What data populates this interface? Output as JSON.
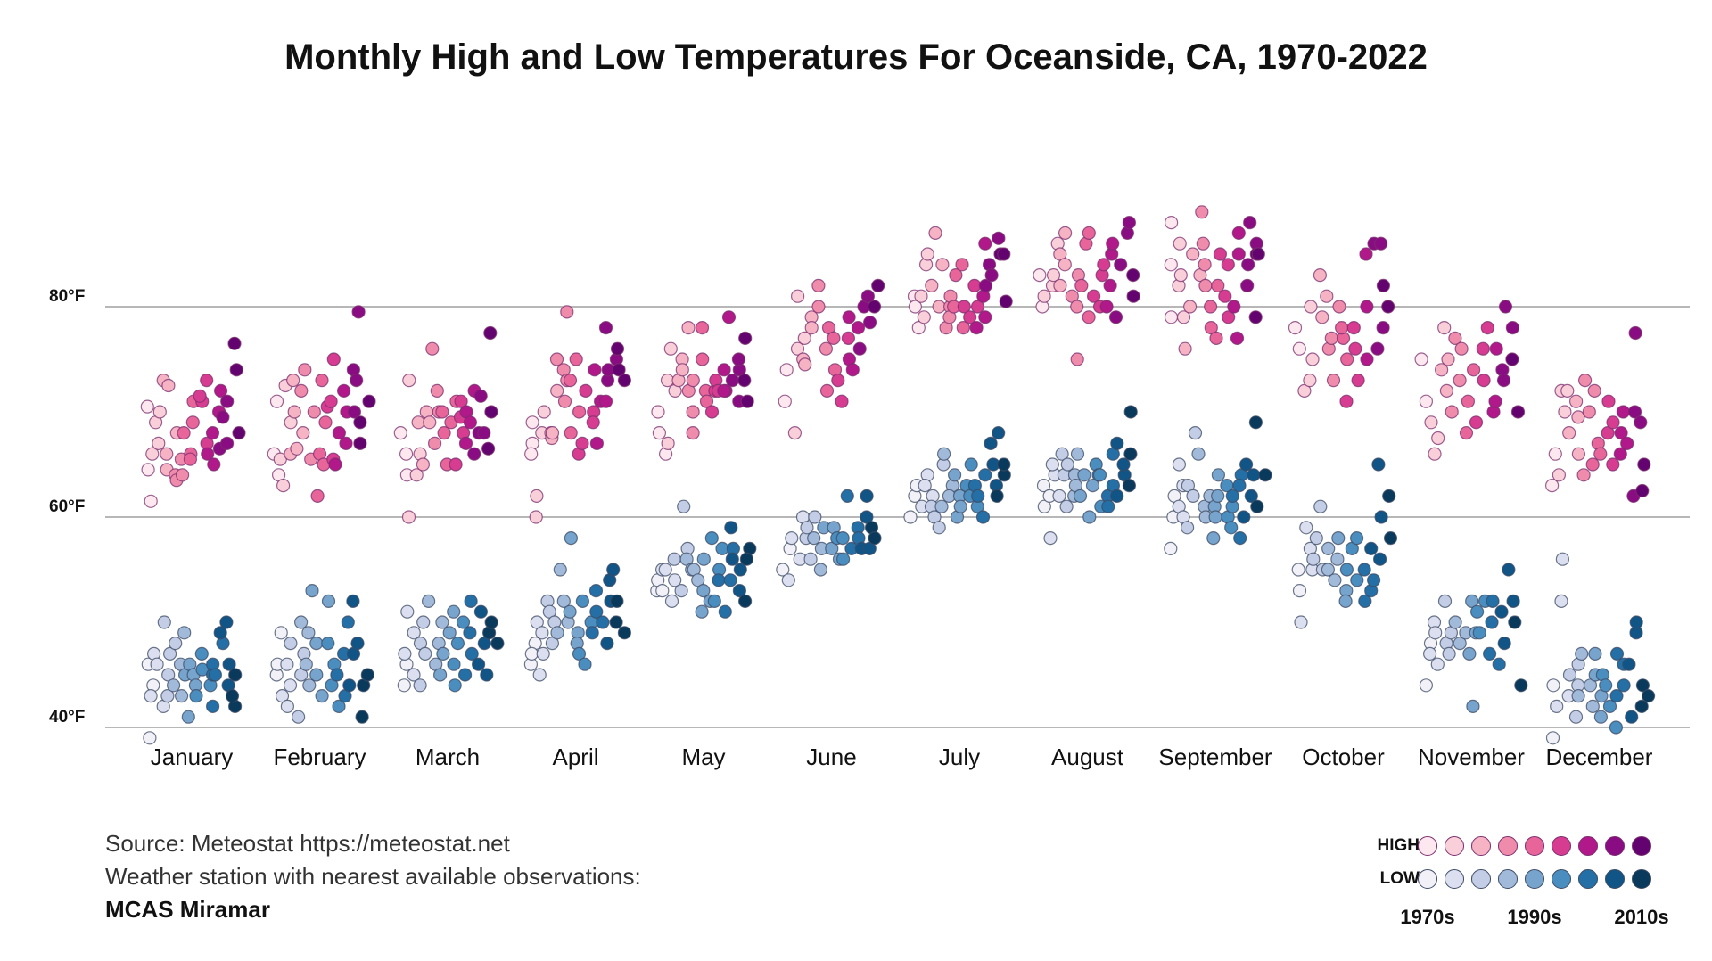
{
  "chart_data": {
    "type": "scatter",
    "title": "Monthly High and Low Temperatures For Oceanside, CA, 1970-2022",
    "xlabel": "",
    "ylabel": "",
    "categories": [
      "January",
      "February",
      "March",
      "April",
      "May",
      "June",
      "July",
      "August",
      "September",
      "October",
      "November",
      "December"
    ],
    "y_ticks": [
      "40°F",
      "60°F",
      "80°F"
    ],
    "y_tick_values": [
      40,
      60,
      80
    ],
    "ylim": [
      39,
      92
    ],
    "x_range_years": [
      1970,
      2022
    ],
    "grid": "horizontal",
    "legend_position": "bottom-right",
    "series": [
      {
        "name": "HIGH",
        "encoding": "Each point is one year's average daily high for the month; within each month points are ordered by year, 1970 to 2022",
        "values": {
          "January": [
            64.5,
            61.5,
            70.5,
            66,
            67,
            69,
            70,
            73,
            64.5,
            66,
            72.5,
            68,
            64,
            63.5,
            65.5,
            64,
            68,
            66,
            65.5,
            69,
            71,
            71,
            71.5,
            67,
            73,
            66,
            68,
            65,
            70,
            72,
            66.5,
            69.5,
            67,
            71,
            74,
            76.5,
            68
          ],
          "February": [
            66,
            64,
            71,
            65.5,
            63,
            72.5,
            69,
            66,
            73,
            70,
            66.5,
            68,
            72,
            74,
            65.5,
            70,
            62,
            66,
            73,
            65,
            69,
            70.5,
            65.5,
            71,
            75,
            65,
            68,
            72,
            70,
            67,
            74,
            73,
            70,
            79.5,
            67,
            69,
            71
          ],
          "March": [
            68,
            66,
            64,
            60,
            73,
            64,
            66,
            69,
            70,
            65,
            69,
            76,
            67,
            70,
            72,
            68,
            70,
            69,
            65,
            71,
            65,
            69.5,
            68,
            71,
            70,
            67,
            69,
            72,
            66,
            68,
            71.5,
            68,
            77.5,
            66.5,
            70
          ],
          "April": [
            67,
            69,
            66,
            60,
            62,
            68,
            70,
            68,
            67.5,
            68,
            72,
            75,
            74,
            71,
            73,
            79.5,
            73,
            68,
            70,
            75,
            66,
            67,
            72,
            70,
            69,
            74,
            67,
            71,
            71,
            78,
            73,
            74,
            75,
            76,
            74,
            73
          ],
          "May": [
            70,
            68,
            66,
            67,
            73,
            76,
            72,
            73,
            75,
            74,
            78,
            72,
            70,
            68,
            73,
            75,
            78,
            72,
            71,
            70,
            72,
            73,
            72,
            74,
            72,
            72,
            79,
            73,
            71,
            74,
            75,
            77,
            73,
            71
          ],
          "June": [
            71,
            74,
            68,
            76,
            81,
            77,
            75,
            74.5,
            79,
            78,
            82,
            80,
            76,
            72,
            78,
            74,
            77,
            73,
            71,
            77,
            75,
            79,
            74,
            78,
            76,
            80,
            81,
            78.5,
            82,
            80
          ],
          "July": [
            81,
            80,
            78,
            79,
            81,
            84,
            85,
            82,
            80,
            87,
            84,
            78,
            80,
            79,
            81,
            80,
            83,
            84,
            78,
            80,
            79,
            82,
            80,
            78,
            81,
            86,
            79,
            82,
            84,
            83,
            86.5,
            85,
            80.5,
            85
          ],
          "August": [
            83,
            80,
            81,
            82,
            83,
            86,
            82,
            85,
            87,
            84,
            81,
            80,
            75,
            83,
            82,
            86,
            87,
            79,
            81,
            80,
            83,
            84,
            80,
            82,
            85,
            86,
            79,
            84,
            87,
            88,
            81,
            83
          ],
          "September": [
            79,
            84,
            88,
            86,
            82,
            83,
            79,
            76,
            80,
            85,
            83,
            89,
            86,
            82,
            84,
            80,
            78,
            77,
            82,
            85,
            81,
            84,
            79,
            80,
            77,
            85,
            87,
            84,
            82,
            88,
            86,
            85,
            79,
            85
          ],
          "October": [
            78,
            76,
            72,
            73,
            75,
            80,
            83,
            79,
            81,
            76,
            77,
            73,
            80,
            77,
            78,
            75,
            71,
            78,
            76,
            73,
            85,
            80,
            75,
            86,
            76,
            78,
            86,
            82,
            80
          ],
          "November": [
            75,
            71,
            69,
            66,
            67.5,
            78,
            74,
            72,
            75,
            70,
            77,
            73,
            76,
            68,
            71,
            74,
            69,
            76,
            73,
            78,
            70,
            71,
            76,
            74,
            73,
            80,
            78,
            75,
            70
          ],
          "December": [
            63,
            66,
            72,
            64,
            70,
            72,
            68,
            71,
            66,
            69.5,
            73,
            64,
            70,
            72,
            65,
            67,
            66,
            71,
            68,
            65,
            69,
            68,
            66,
            70,
            67,
            62,
            70,
            77.5,
            69,
            65,
            62.5
          ]
        }
      },
      {
        "name": "LOW",
        "encoding": "Each point is one year's average daily low for the month; within each month points are ordered by year, 1970 to 2022",
        "values": {
          "January": [
            46,
            39,
            44,
            43,
            47,
            46,
            42,
            50,
            45,
            43,
            47,
            48,
            44,
            46,
            43,
            49,
            45,
            46,
            41,
            45,
            44,
            43,
            47,
            45.5,
            44,
            45,
            46,
            42,
            45,
            48,
            49,
            50,
            44,
            46,
            42,
            43,
            45
          ],
          "February": [
            45,
            46,
            49,
            43,
            42,
            44,
            46,
            48,
            41,
            45,
            47,
            50,
            46,
            44,
            49,
            53,
            48,
            45,
            43,
            52,
            48,
            44,
            46,
            42,
            45,
            47,
            43,
            50,
            52,
            44,
            47,
            48,
            41,
            44,
            45
          ],
          "March": [
            44,
            46,
            47,
            51,
            45,
            49,
            48,
            44,
            50,
            47,
            52,
            46,
            48,
            50,
            45,
            47,
            49,
            51,
            44,
            46,
            48,
            50,
            45,
            49,
            52,
            47,
            46,
            51,
            48,
            45,
            49,
            50,
            48
          ],
          "April": [
            46,
            48,
            47,
            50,
            45,
            49,
            47,
            52,
            51,
            48,
            50,
            49,
            55,
            52,
            50,
            51,
            58,
            49,
            48,
            47,
            52,
            46,
            50,
            49,
            51,
            53,
            50,
            48,
            52,
            54,
            55,
            52,
            50,
            49
          ],
          "May": [
            53,
            54,
            53,
            55,
            55,
            52,
            54,
            56,
            53,
            61,
            57,
            56,
            55,
            55,
            54,
            51,
            53,
            56,
            52,
            58,
            52,
            55,
            57,
            54,
            51,
            54,
            57,
            59,
            56,
            55,
            53,
            52,
            57,
            56
          ],
          "June": [
            55,
            57,
            54,
            58,
            56,
            60,
            58,
            59,
            56,
            60,
            58,
            57,
            55,
            59,
            57,
            59,
            56,
            58,
            56,
            58,
            62,
            57,
            59,
            58,
            57,
            60,
            62,
            57,
            59,
            58
          ],
          "July": [
            60,
            62,
            63,
            61,
            64,
            63,
            62,
            61,
            60,
            59,
            65,
            61,
            66,
            63,
            62,
            60,
            64,
            62,
            61,
            63,
            62,
            65,
            61,
            63,
            62,
            60,
            64,
            67,
            65,
            63,
            68,
            62,
            64,
            65
          ],
          "August": [
            63,
            61,
            62,
            58,
            64,
            65,
            62,
            64,
            66,
            61,
            65,
            62,
            64,
            63,
            66,
            62,
            64,
            60,
            63,
            65,
            64,
            61,
            64,
            62,
            61,
            66,
            63,
            62,
            67,
            64,
            65,
            63,
            70,
            66
          ],
          "September": [
            57,
            62,
            60,
            65,
            61,
            63,
            60,
            59,
            63,
            62,
            68,
            66,
            61,
            60,
            62,
            58,
            61,
            64,
            60,
            62,
            63,
            60,
            61,
            59,
            62,
            58,
            64,
            63,
            60,
            65,
            62,
            64,
            69,
            61,
            64
          ],
          "October": [
            55,
            53,
            50,
            59,
            57,
            55,
            56,
            58,
            61,
            55,
            57,
            55,
            56,
            54,
            58,
            53,
            52,
            55,
            57,
            54,
            58,
            52,
            55,
            53,
            54,
            57,
            65,
            60,
            56,
            62,
            58
          ],
          "November": [
            44,
            48,
            47,
            50,
            49,
            46,
            48,
            52,
            47,
            49,
            50,
            48,
            49,
            47,
            42,
            52,
            49,
            51,
            49,
            52,
            47,
            50,
            52,
            46,
            48,
            51,
            55,
            52,
            50,
            44
          ],
          "December": [
            44,
            39,
            42,
            56,
            52,
            43,
            45,
            41,
            46,
            44,
            43,
            47,
            44,
            42,
            45,
            47,
            41,
            43,
            45,
            44,
            42,
            40,
            47,
            43,
            46,
            44,
            41,
            46,
            49,
            50,
            42,
            44,
            43
          ]
        }
      }
    ],
    "source_lines": [
      "Source: Meteostat https://meteostat.net",
      "Weather station with nearest available observations:"
    ],
    "station": "MCAS Miramar",
    "legend": {
      "high_label": "HIGH",
      "low_label": "LOW",
      "decade_labels": [
        "1970s",
        "1990s",
        "2010s"
      ],
      "high_colors": [
        "#fce8ee",
        "#f9cfd9",
        "#f5b3c3",
        "#f08cab",
        "#e8659a",
        "#d63c8f",
        "#b1188a",
        "#8a0c82",
        "#63036f"
      ],
      "low_colors": [
        "#f2f1f8",
        "#dcdff0",
        "#c3cde6",
        "#a2bad9",
        "#76a4cd",
        "#4a8ebf",
        "#2470a6",
        "#115587",
        "#093a5c"
      ],
      "outline_high": "#7b2d6e",
      "outline_low": "#3b4a64"
    }
  }
}
